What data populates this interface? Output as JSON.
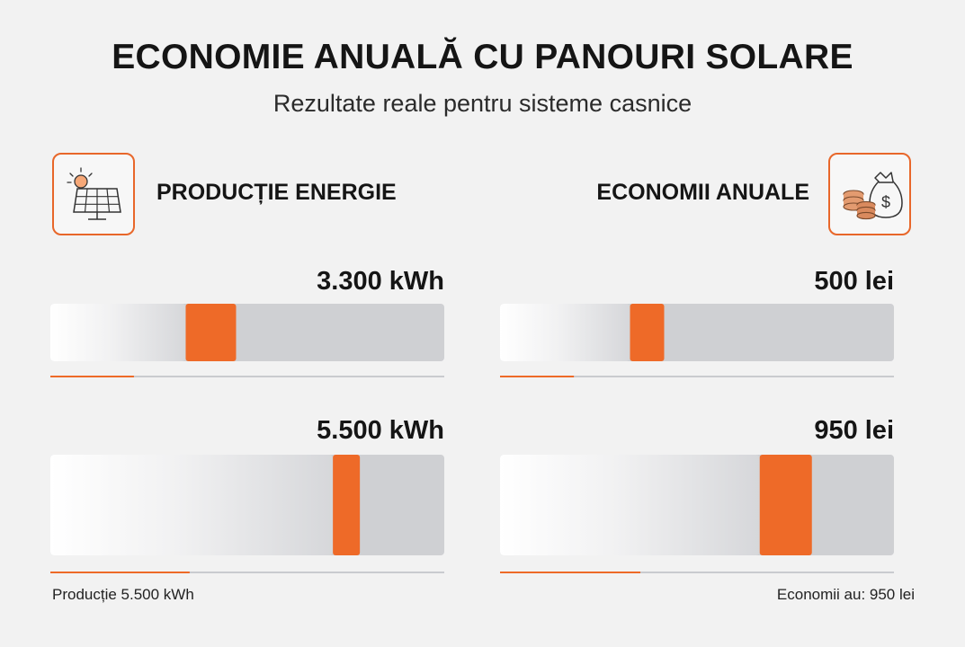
{
  "title": "ECONOMIE ANUALĂ CU PANOURI SOLARE",
  "subtitle": "Rezultate reale pentru sisteme casnice",
  "colors": {
    "accent": "#ee6a28",
    "track": "#cfd0d3",
    "background": "#f2f2f2"
  },
  "left": {
    "icon": "solar-panel-icon",
    "heading": "PRODUCȚIE ENERGIE",
    "footnote": "Producție 5.500 kWh"
  },
  "right": {
    "icon": "money-bag-icon",
    "heading": "ECONOMII ANUALE",
    "footnote": "Economii au: 950 lei"
  },
  "chart_data": [
    {
      "type": "bar",
      "title": "PRODUCȚIE ENERGIE",
      "categories": [
        "3.300 kWh",
        "5.500 kWh"
      ],
      "values": [
        3300,
        5500
      ],
      "unit": "kWh",
      "value_labels": [
        "3.300 kWh",
        "5.500 kWh"
      ],
      "xlim": [
        0,
        7000
      ],
      "grid": false
    },
    {
      "type": "bar",
      "title": "ECONOMII ANUALE",
      "categories": [
        "500 lei",
        "950 lei"
      ],
      "values": [
        500,
        950
      ],
      "unit": "lei",
      "value_labels": [
        "500 lei",
        "950 lei"
      ],
      "xlim": [
        0,
        1200
      ],
      "grid": false
    }
  ]
}
